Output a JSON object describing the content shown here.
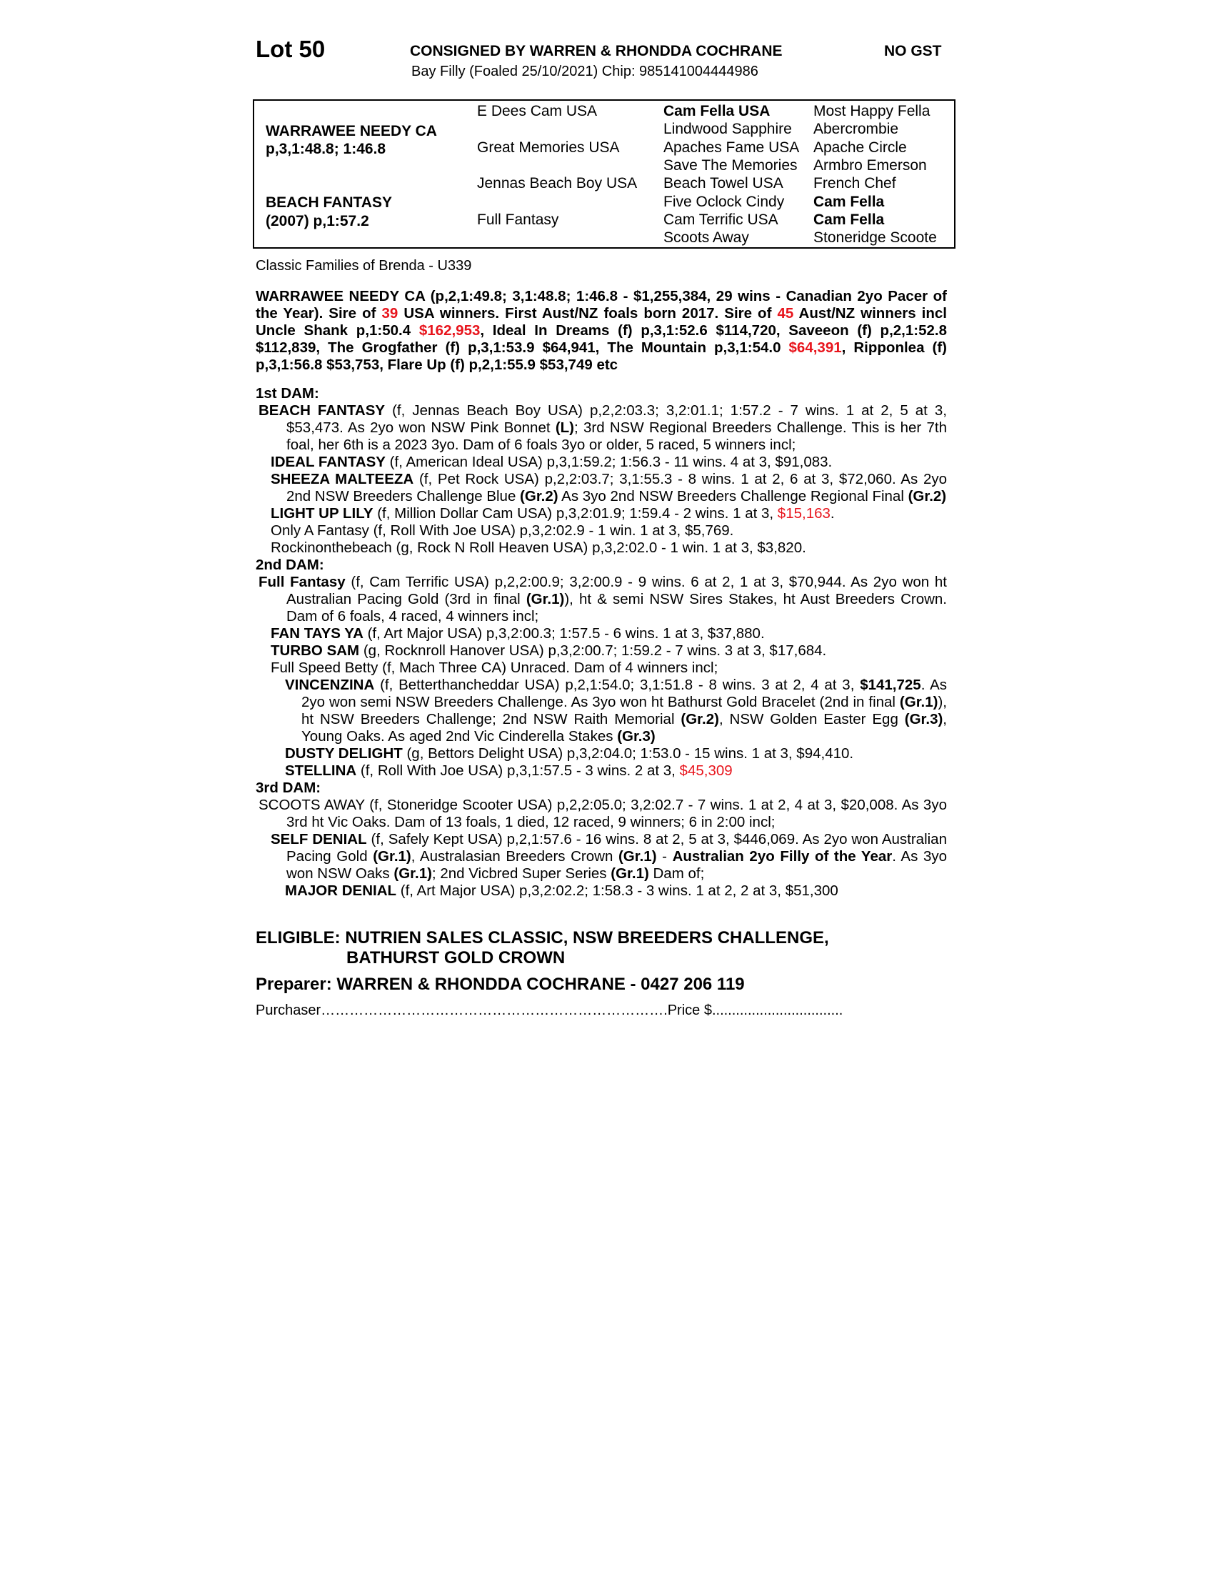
{
  "header": {
    "lot": "Lot 50",
    "consigned": "CONSIGNED BY WARREN & RHONDDA COCHRANE",
    "gst": "NO GST",
    "subtitle": "Bay Filly (Foaled 25/10/2021) Chip: 985141004444986"
  },
  "pedigree": {
    "sire_name": "WARRAWEE NEEDY CA",
    "sire_record": "p,3,1:48.8; 1:46.8",
    "dam_name": "BEACH FANTASY",
    "dam_record": "(2007) p,1:57.2",
    "gen2": [
      "E Dees Cam USA",
      "Great Memories USA",
      "Jennas Beach Boy USA",
      "Full Fantasy"
    ],
    "gen3": [
      "Cam Fella USA",
      "Lindwood Sapphire",
      "Apaches Fame USA",
      "Save The Memories",
      "Beach Towel USA",
      "Five Oclock Cindy",
      "Cam Terrific USA",
      "Scoots Away"
    ],
    "gen3_bold": [
      true,
      false,
      false,
      false,
      false,
      false,
      false,
      false
    ],
    "gen4": [
      "Most Happy Fella",
      "Abercrombie",
      "Apache Circle",
      "Armbro Emerson",
      "French Chef",
      "Cam Fella",
      "Cam Fella",
      "Stoneridge Scoote"
    ],
    "gen4_bold": [
      false,
      false,
      false,
      false,
      false,
      true,
      true,
      false
    ]
  },
  "family": "Classic Families of Brenda - U339",
  "paragraphs": [
    {
      "cls": "sire",
      "segs": [
        [
          "WARRAWEE NEEDY CA (p,2,1:49.8; 3,1:48.8; 1:46.8 - $1,255,384, 29 wins - Canadian 2yo Pacer of the Year). Sire of ",
          ""
        ],
        [
          "39",
          "r"
        ],
        [
          " USA winners. First Aust/NZ foals born 2017. Sire of ",
          ""
        ],
        [
          "45",
          "r"
        ],
        [
          " Aust/NZ winners incl Uncle Shank p,1:50.4 ",
          ""
        ],
        [
          "$162,953",
          "r"
        ],
        [
          ", Ideal In Dreams (f) p,3,1:52.6 $114,720, Saveeon (f) p,2,1:52.8 $112,839, The Grogfather (f) p,3,1:53.9 $64,941, The Mountain p,3,1:54.0 ",
          ""
        ],
        [
          "$64,391",
          "r"
        ],
        [
          ", Ripponlea (f) p,3,1:56.8 $53,753, Flare Up (f) p,2,1:55.9 $53,749 etc",
          ""
        ]
      ]
    },
    {
      "cls": "h",
      "segs": [
        [
          "1st DAM:",
          ""
        ]
      ]
    },
    {
      "cls": "l0",
      "segs": [
        [
          "BEACH FANTASY",
          "b"
        ],
        [
          " (f, Jennas Beach Boy USA) p,2,2:03.3; 3,2:01.1; 1:57.2 - 7 wins. 1 at 2, 5 at 3, $53,473. As 2yo won NSW Pink Bonnet ",
          ""
        ],
        [
          "(L)",
          "b"
        ],
        [
          "; 3rd NSW Regional Breeders Challenge. This is her 7th foal, her 6th is a 2023 3yo. Dam of 6 foals 3yo or older, 5 raced, 5 winners incl;",
          ""
        ]
      ]
    },
    {
      "cls": "l1",
      "segs": [
        [
          "IDEAL FANTASY",
          "b"
        ],
        [
          " (f, American Ideal USA) p,3,1:59.2; 1:56.3 - 11 wins. 4 at 3, $91,083.",
          ""
        ]
      ]
    },
    {
      "cls": "l1",
      "segs": [
        [
          "SHEEZA MALTEEZA",
          "b"
        ],
        [
          " (f, Pet Rock USA) p,2,2:03.7; 3,1:55.3 - 8 wins. 1 at 2, 6 at 3, $72,060. As 2yo 2nd NSW Breeders Challenge Blue ",
          ""
        ],
        [
          "(Gr.2)",
          "b"
        ],
        [
          " As 3yo 2nd NSW Breeders Challenge Regional Final ",
          ""
        ],
        [
          "(Gr.2)",
          "b"
        ]
      ]
    },
    {
      "cls": "l1",
      "segs": [
        [
          "LIGHT UP LILY",
          "b"
        ],
        [
          " (f, Million Dollar Cam USA) p,3,2:01.9; 1:59.4 - 2 wins. 1 at 3, ",
          ""
        ],
        [
          "$15,163",
          "r"
        ],
        [
          ".",
          ""
        ]
      ]
    },
    {
      "cls": "l1",
      "segs": [
        [
          "Only A Fantasy (f, Roll With Joe USA) p,3,2:02.9 - 1 win. 1 at 3, $5,769.",
          ""
        ]
      ]
    },
    {
      "cls": "l1",
      "segs": [
        [
          "Rockinonthebeach (g, Rock N Roll Heaven USA) p,3,2:02.0 - 1 win. 1 at 3, $3,820.",
          ""
        ]
      ]
    },
    {
      "cls": "h",
      "segs": [
        [
          "2nd DAM:",
          ""
        ]
      ]
    },
    {
      "cls": "l0",
      "segs": [
        [
          "Full Fantasy",
          "b"
        ],
        [
          " (f, Cam Terrific USA) p,2,2:00.9; 3,2:00.9 - 9 wins. 6 at 2, 1 at 3, $70,944. As 2yo won ht Australian Pacing Gold (3rd in final ",
          ""
        ],
        [
          "(Gr.1)",
          "b"
        ],
        [
          "), ht & semi NSW Sires Stakes, ht Aust Breeders Crown. Dam of 6 foals, 4 raced, 4 winners incl;",
          ""
        ]
      ]
    },
    {
      "cls": "l1",
      "segs": [
        [
          "FAN TAYS YA",
          "b"
        ],
        [
          " (f, Art Major USA) p,3,2:00.3; 1:57.5 - 6 wins. 1 at 3, $37,880.",
          ""
        ]
      ]
    },
    {
      "cls": "l1",
      "segs": [
        [
          "TURBO SAM",
          "b"
        ],
        [
          " (g, Rocknroll Hanover USA) p,3,2:00.7; 1:59.2 - 7 wins. 3 at 3, $17,684.",
          ""
        ]
      ]
    },
    {
      "cls": "l1",
      "segs": [
        [
          "Full Speed Betty (f, Mach Three CA) Unraced. Dam of 4 winners incl;",
          ""
        ]
      ]
    },
    {
      "cls": "l2",
      "segs": [
        [
          "VINCENZINA",
          "b"
        ],
        [
          " (f, Betterthancheddar USA) p,2,1:54.0; 3,1:51.8 - 8 wins. 3 at 2, 4 at 3, ",
          ""
        ],
        [
          "$141,725",
          "b"
        ],
        [
          ". As 2yo won semi NSW Breeders Challenge. As 3yo won ht Bathurst Gold Bracelet (2nd in final ",
          ""
        ],
        [
          "(Gr.1)",
          "b"
        ],
        [
          "), ht NSW Breeders Challenge; 2nd NSW Raith Memorial ",
          ""
        ],
        [
          "(Gr.2)",
          "b"
        ],
        [
          ", NSW Golden Easter Egg ",
          ""
        ],
        [
          "(Gr.3)",
          "b"
        ],
        [
          ", Young Oaks. As aged 2nd Vic Cinderella Stakes ",
          ""
        ],
        [
          "(Gr.3)",
          "b"
        ]
      ]
    },
    {
      "cls": "l2",
      "segs": [
        [
          "DUSTY DELIGHT",
          "b"
        ],
        [
          " (g, Bettors Delight USA) p,3,2:04.0; 1:53.0 - 15 wins. 1 at 3, $94,410.",
          ""
        ]
      ]
    },
    {
      "cls": "l2",
      "segs": [
        [
          "STELLINA",
          "b"
        ],
        [
          " (f, Roll With Joe USA) p,3,1:57.5 - 3 wins. 2 at 3, ",
          ""
        ],
        [
          "$45,309",
          "r"
        ]
      ]
    },
    {
      "cls": "h",
      "segs": [
        [
          "3rd DAM:",
          ""
        ]
      ]
    },
    {
      "cls": "l0",
      "segs": [
        [
          "SCOOTS AWAY (f, Stoneridge Scooter USA) p,2,2:05.0; 3,2:02.7 - 7 wins. 1 at 2, 4 at 3, $20,008. As 3yo 3rd ht Vic Oaks. Dam of 13 foals, 1 died, 12 raced, 9 winners; 6 in 2:00 incl;",
          ""
        ]
      ]
    },
    {
      "cls": "l1",
      "segs": [
        [
          "SELF DENIAL",
          "b"
        ],
        [
          " (f, Safely Kept USA) p,2,1:57.6 - 16 wins. 8 at 2, 5 at 3, $446,069. As 2yo won Australian Pacing Gold ",
          ""
        ],
        [
          "(Gr.1)",
          "b"
        ],
        [
          ", Australasian Breeders Crown ",
          ""
        ],
        [
          "(Gr.1)",
          "b"
        ],
        [
          " - ",
          ""
        ],
        [
          "Australian 2yo Filly of the Year",
          "b"
        ],
        [
          ". As 3yo won NSW Oaks ",
          ""
        ],
        [
          "(Gr.1)",
          "b"
        ],
        [
          "; 2nd Vicbred Super Series ",
          ""
        ],
        [
          "(Gr.1)",
          "b"
        ],
        [
          " Dam of;",
          ""
        ]
      ]
    },
    {
      "cls": "l2",
      "segs": [
        [
          "MAJOR DENIAL",
          "b"
        ],
        [
          " (f, Art Major USA) p,3,2:02.2; 1:58.3 - 3 wins. 1 at 2, 2 at 3, $51,300",
          ""
        ]
      ]
    }
  ],
  "eligible": {
    "line1": "ELIGIBLE: NUTRIEN SALES CLASSIC, NSW BREEDERS CHALLENGE,",
    "line2": "BATHURST GOLD CROWN"
  },
  "preparer": "Preparer: WARREN & RHONDDA COCHRANE - 0427 206 119",
  "purchaser": {
    "label": "Purchaser……………………………………………………………….Price $................................."
  },
  "colors": {
    "highlight": "#e8141c",
    "text": "#000000"
  }
}
